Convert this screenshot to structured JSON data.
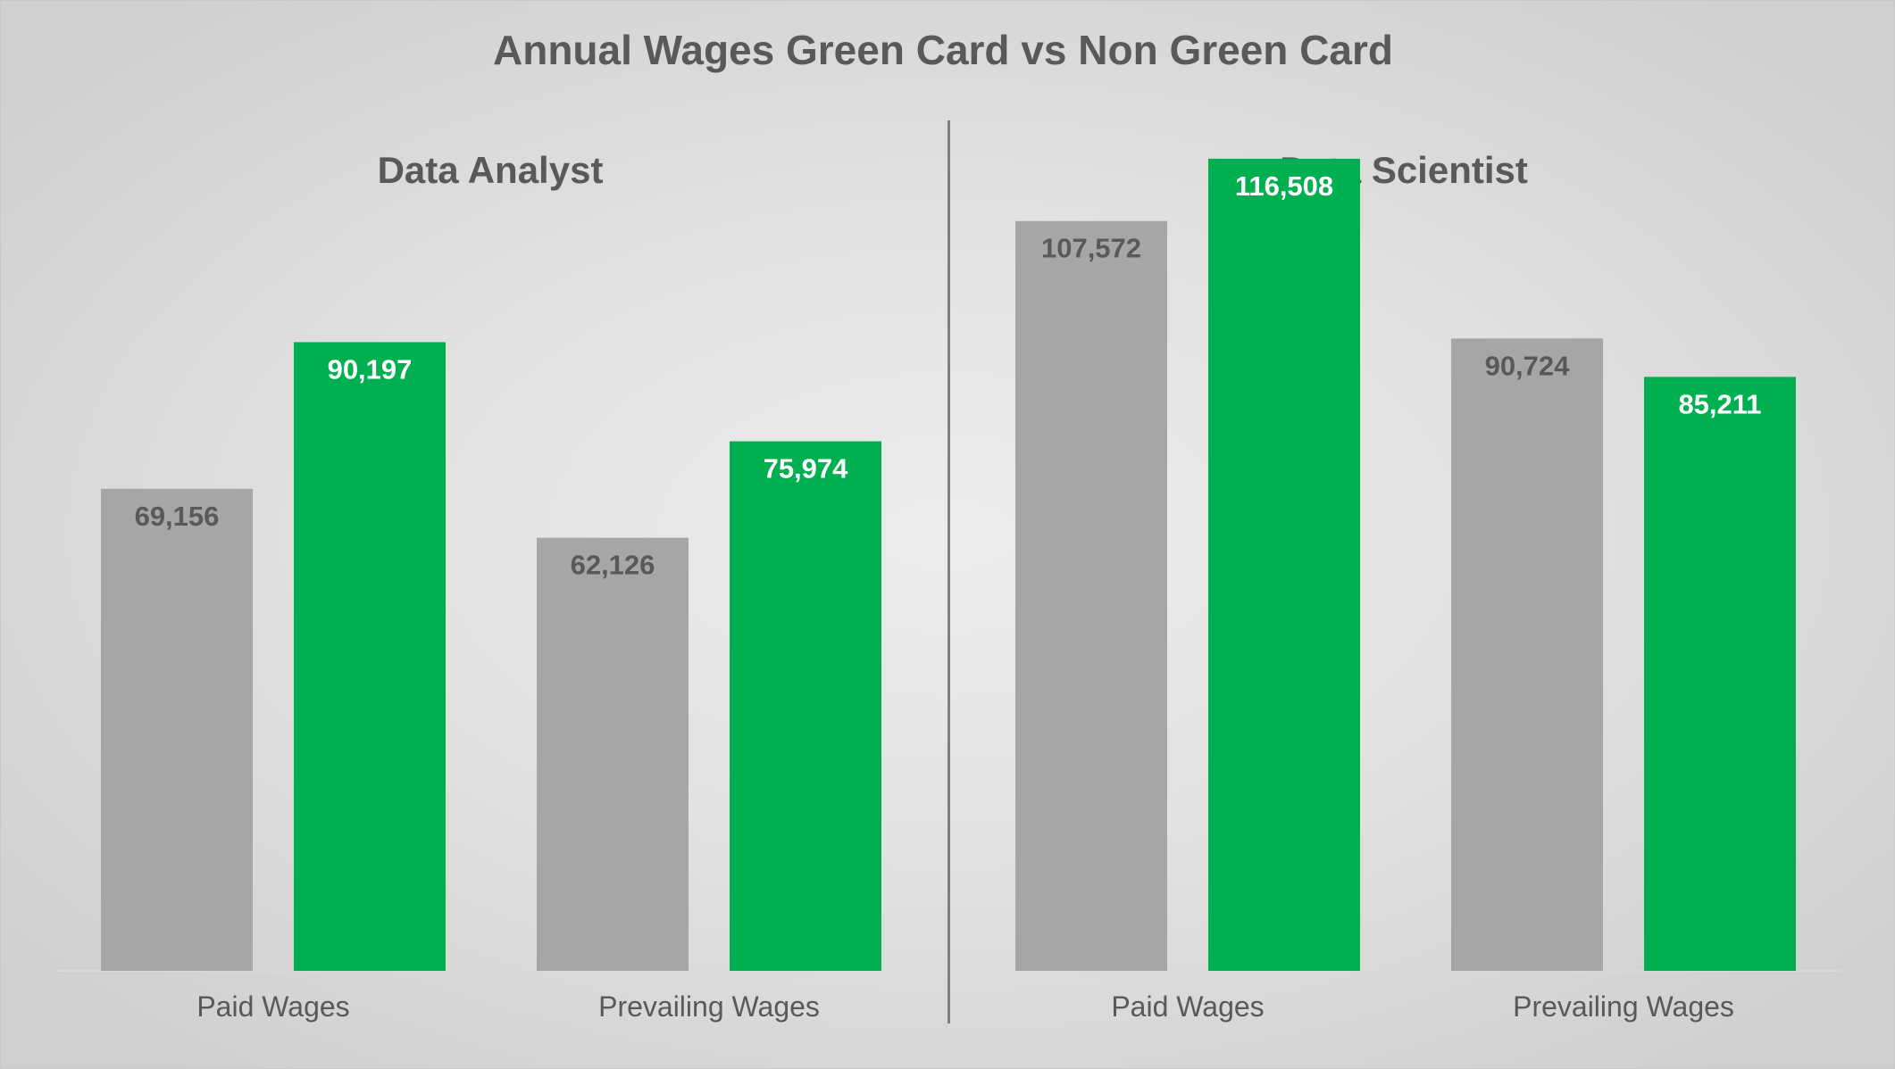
{
  "title": "Annual Wages Green Card vs Non Green Card",
  "colors": {
    "non_green_card": "#a6a6a6",
    "green_card": "#00b050",
    "label_on_gray": "#595959",
    "label_on_green": "#ffffff",
    "axis_label": "#595959",
    "baseline": "#d9d9d9"
  },
  "chart_data": [
    {
      "type": "bar",
      "title": "Data Analyst",
      "categories": [
        "Paid Wages",
        "Prevailing Wages"
      ],
      "series": [
        {
          "values": [
            69156,
            62126
          ],
          "labels": [
            "69,156",
            "62,126"
          ]
        },
        {
          "values": [
            90197,
            75974
          ],
          "labels": [
            "90,197",
            "75,974"
          ]
        }
      ],
      "ylim": [
        0,
        122000
      ],
      "grid": false,
      "legend": "none"
    },
    {
      "type": "bar",
      "title": "Data Scientist",
      "categories": [
        "Paid Wages",
        "Prevailing Wages"
      ],
      "series": [
        {
          "values": [
            107572,
            90724
          ],
          "labels": [
            "107,572",
            "90,724"
          ]
        },
        {
          "values": [
            116508,
            85211
          ],
          "labels": [
            "116,508",
            "85,211"
          ]
        }
      ],
      "ylim": [
        0,
        122000
      ],
      "grid": false,
      "legend": "none"
    }
  ]
}
